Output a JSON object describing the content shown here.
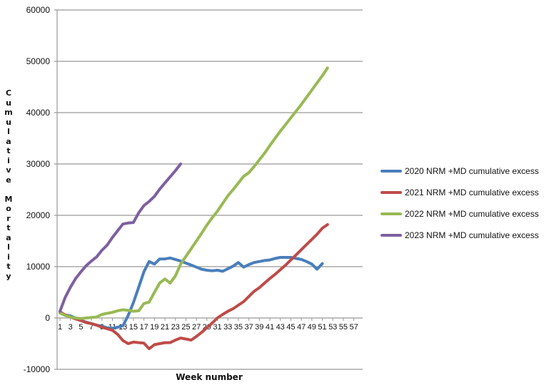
{
  "chart_data": {
    "type": "line",
    "title": "",
    "xlabel": "Week number",
    "ylabel": "Cumulative Mortality",
    "ylim": [
      -10000,
      60000
    ],
    "yticks": [
      -10000,
      0,
      10000,
      20000,
      30000,
      40000,
      50000,
      60000
    ],
    "ytick_labels": [
      "-10000",
      "0",
      "10000",
      "20000",
      "30000",
      "40000",
      "50000",
      "60000"
    ],
    "xlim": [
      1,
      58
    ],
    "xtick_labels": [
      "1",
      "3",
      "5",
      "7",
      "9",
      "11",
      "13",
      "15",
      "17",
      "19",
      "21",
      "23",
      "25",
      "27",
      "29",
      "31",
      "33",
      "35",
      "37",
      "39",
      "41",
      "43",
      "45",
      "47",
      "49",
      "51",
      "53",
      "55",
      "57"
    ],
    "grid": "horizontal",
    "legend_position": "right",
    "series": [
      {
        "name": "2020 NRM +MD cumulative excess",
        "color": "#4a7ebb",
        "values": [
          1000,
          600,
          400,
          0,
          -500,
          -800,
          -1100,
          -1400,
          -1600,
          -1900,
          -2000,
          -1800,
          -1500,
          500,
          3000,
          6000,
          9000,
          11000,
          10500,
          11500,
          11500,
          11700,
          11400,
          11100,
          10700,
          10300,
          9900,
          9500,
          9300,
          9200,
          9300,
          9100,
          9600,
          10100,
          10800,
          9900,
          10400,
          10800,
          11000,
          11200,
          11300,
          11600,
          11800,
          11800,
          11800,
          11600,
          11400,
          11000,
          10500,
          9500,
          10600
        ]
      },
      {
        "name": "2021 NRM +MD cumulative excess",
        "color": "#be4b48",
        "values": [
          1200,
          600,
          200,
          -200,
          -500,
          -900,
          -1100,
          -1400,
          -1800,
          -2100,
          -2400,
          -3200,
          -4400,
          -5000,
          -4700,
          -4800,
          -4900,
          -6000,
          -5200,
          -5000,
          -4800,
          -4800,
          -4300,
          -3900,
          -4100,
          -4300,
          -3600,
          -2800,
          -1900,
          -1000,
          0,
          700,
          1300,
          1800,
          2500,
          3200,
          4200,
          5200,
          5900,
          6800,
          7700,
          8500,
          9400,
          10300,
          11300,
          12300,
          13300,
          14300,
          15300,
          16300,
          17500,
          18200
        ]
      },
      {
        "name": "2022 NRM +MD cumulative excess",
        "color": "#98b954",
        "values": [
          1000,
          500,
          200,
          0,
          -100,
          0,
          100,
          200,
          700,
          900,
          1100,
          1400,
          1600,
          1500,
          1300,
          1400,
          2800,
          3100,
          5000,
          6800,
          7600,
          6800,
          8200,
          10500,
          12000,
          13500,
          15000,
          16500,
          18100,
          19500,
          20800,
          22300,
          23800,
          25000,
          26300,
          27600,
          28300,
          29500,
          30800,
          32100,
          33600,
          35000,
          36400,
          37700,
          39000,
          40300,
          41600,
          43000,
          44400,
          45800,
          47200,
          48700
        ]
      },
      {
        "name": "2023 NRM +MD cumulative excess",
        "color": "#7d60a0",
        "values": [
          1300,
          4000,
          6000,
          7700,
          9000,
          10200,
          11100,
          11900,
          13200,
          14200,
          15700,
          17000,
          18300,
          18500,
          18600,
          20500,
          21900,
          22700,
          23700,
          25100,
          26300,
          27500,
          28700,
          30000
        ]
      }
    ]
  }
}
